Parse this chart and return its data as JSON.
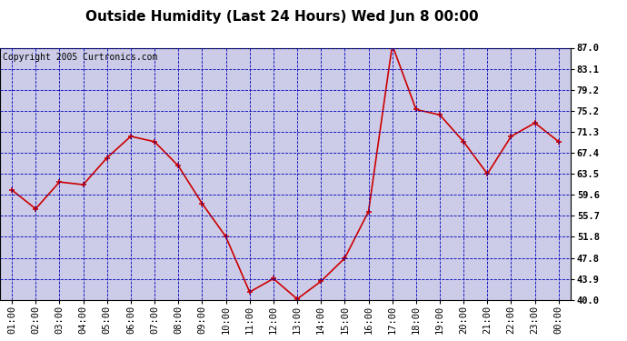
{
  "title": "Outside Humidity (Last 24 Hours) Wed Jun 8 00:00",
  "copyright": "Copyright 2005 Curtronics.com",
  "x_labels": [
    "01:00",
    "02:00",
    "03:00",
    "04:00",
    "05:00",
    "06:00",
    "07:00",
    "08:00",
    "09:00",
    "10:00",
    "11:00",
    "12:00",
    "13:00",
    "14:00",
    "15:00",
    "16:00",
    "17:00",
    "18:00",
    "19:00",
    "20:00",
    "21:00",
    "22:00",
    "23:00",
    "00:00"
  ],
  "y_values": [
    60.5,
    57.0,
    62.0,
    61.5,
    66.5,
    70.5,
    69.5,
    65.0,
    58.0,
    51.8,
    41.5,
    44.0,
    40.2,
    43.5,
    47.8,
    56.5,
    87.5,
    75.5,
    74.5,
    69.5,
    63.5,
    70.5,
    73.0,
    69.5
  ],
  "ylim_min": 40.0,
  "ylim_max": 87.0,
  "y_ticks": [
    40.0,
    43.9,
    47.8,
    51.8,
    55.7,
    59.6,
    63.5,
    67.4,
    71.3,
    75.2,
    79.2,
    83.1,
    87.0
  ],
  "line_color": "#cc0000",
  "marker_color": "#cc0000",
  "bg_color": "#cccce8",
  "fig_bg_color": "#ffffff",
  "grid_color": "#0000bb",
  "title_fontsize": 11,
  "copyright_fontsize": 7,
  "tick_fontsize": 7.5
}
